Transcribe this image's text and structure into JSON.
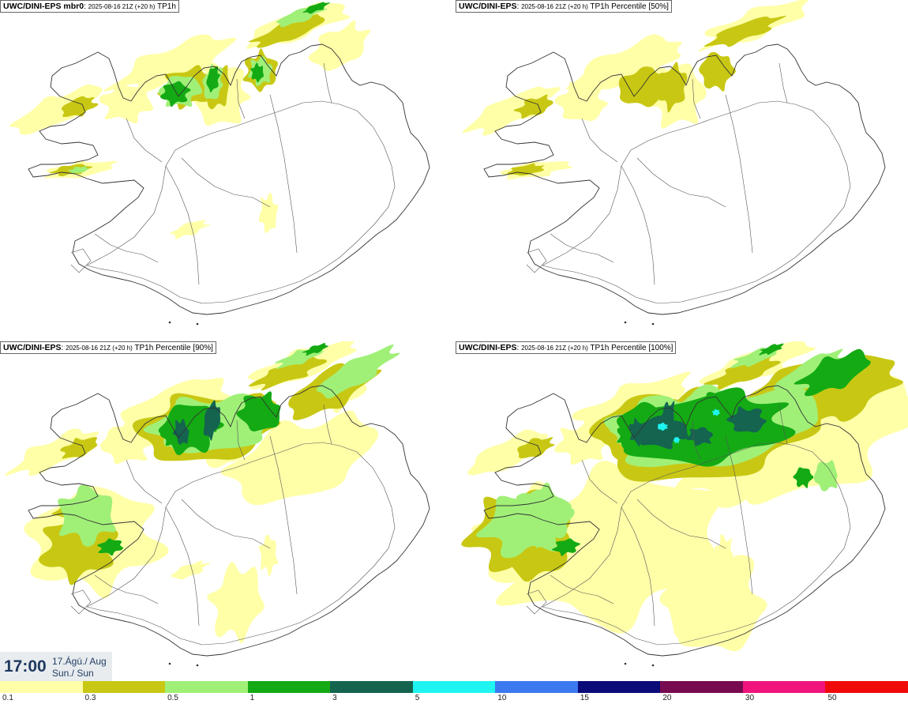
{
  "panels": [
    {
      "id": "p0",
      "model": "UWC/DINI-EPS mbr0",
      "sep": ":",
      "run": "2025-08-16 21Z (+20 h)",
      "field": "TP1h",
      "intensity": 1
    },
    {
      "id": "p1",
      "model": "UWC/DINI-EPS",
      "sep": ":",
      "run": "2025-08-16 21Z (+20 h)",
      "field": "TP1h Percentile [50%]",
      "intensity": 0
    },
    {
      "id": "p2",
      "model": "UWC/DINI-EPS",
      "sep": ":",
      "run": "2025-08-16 21Z (+20 h)",
      "field": "TP1h Percentile [90%]",
      "intensity": 2
    },
    {
      "id": "p3",
      "model": "UWC/DINI-EPS",
      "sep": ":",
      "run": "2025-08-16 21Z (+20 h)",
      "field": "TP1h Percentile [100%]",
      "intensity": 3
    }
  ],
  "clock": {
    "time": "17:00",
    "date_line": "17.Ágú./ Aug",
    "day_line": "Sun./ Sun"
  },
  "legend": {
    "colors": [
      "#ffffa8",
      "#c8c814",
      "#a0f078",
      "#14aa14",
      "#146450",
      "#1ef5f0",
      "#3c78f0",
      "#0a0a78",
      "#780a50",
      "#f0147d",
      "#f00a0a"
    ],
    "labels": [
      "0.1",
      "0.3",
      "0.5",
      "1",
      "3",
      "5",
      "10",
      "15",
      "20",
      "30",
      "50"
    ]
  }
}
